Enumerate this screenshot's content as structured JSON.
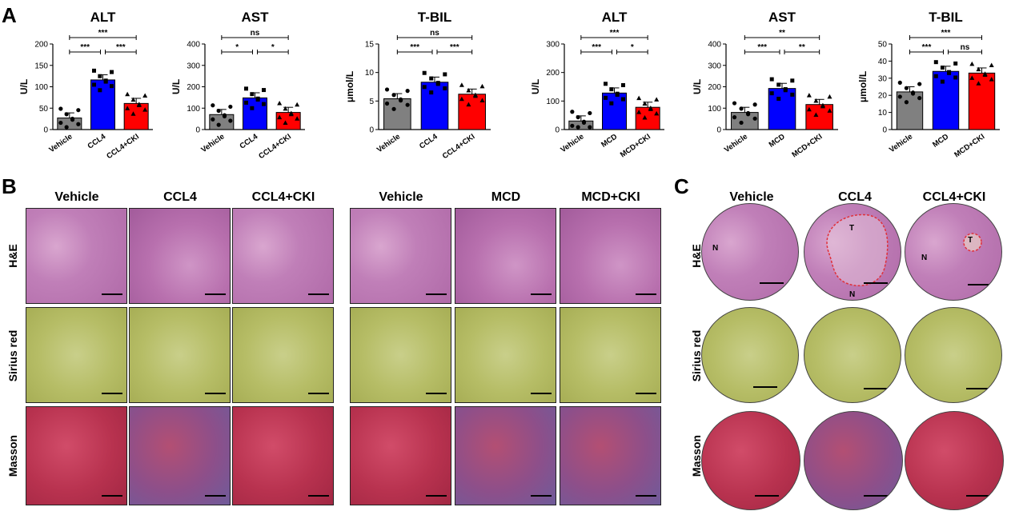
{
  "panels": {
    "a": "A",
    "b": "B",
    "c": "C"
  },
  "colors": {
    "vehicle": "#808080",
    "ccl4": "#0000ff",
    "treat": "#ff0000"
  },
  "chart_data": [
    {
      "type": "bar",
      "title": "ALT",
      "ylabel": "U/L",
      "categories": [
        "Vehicle",
        "CCL4",
        "CCL4+CKI"
      ],
      "values": [
        27,
        116,
        61
      ],
      "ylim": [
        0,
        200
      ],
      "yticks": [
        "0",
        "50",
        "100",
        "150",
        "200"
      ],
      "brackets": [
        {
          "from": 0,
          "to": 1,
          "text": "***",
          "level": 0
        },
        {
          "from": 1,
          "to": 2,
          "text": "***",
          "level": 0
        },
        {
          "from": 0,
          "to": 2,
          "text": "***",
          "level": 1
        }
      ]
    },
    {
      "type": "bar",
      "title": "AST",
      "ylabel": "U/L",
      "categories": [
        "Vehicle",
        "CCL4",
        "CCL4+CKI"
      ],
      "values": [
        70,
        148,
        80
      ],
      "ylim": [
        0,
        400
      ],
      "yticks": [
        "0",
        "100",
        "200",
        "300",
        "400"
      ],
      "brackets": [
        {
          "from": 0,
          "to": 1,
          "text": "*",
          "level": 0
        },
        {
          "from": 1,
          "to": 2,
          "text": "*",
          "level": 0
        },
        {
          "from": 0,
          "to": 2,
          "text": "ns",
          "level": 1
        }
      ]
    },
    {
      "type": "bar",
      "title": "T-BIL",
      "ylabel": "μmol/L",
      "categories": [
        "Vehicle",
        "CCL4",
        "CCL4+CKI"
      ],
      "values": [
        5.4,
        8.3,
        6.2
      ],
      "ylim": [
        0,
        15
      ],
      "yticks": [
        "0",
        "5",
        "10",
        "15"
      ],
      "brackets": [
        {
          "from": 0,
          "to": 1,
          "text": "***",
          "level": 0
        },
        {
          "from": 1,
          "to": 2,
          "text": "***",
          "level": 0
        },
        {
          "from": 0,
          "to": 2,
          "text": "ns",
          "level": 1
        }
      ]
    },
    {
      "type": "bar",
      "title": "ALT",
      "ylabel": "U/L",
      "categories": [
        "Vehicle",
        "MCD",
        "MCD+CKI"
      ],
      "values": [
        30,
        128,
        78
      ],
      "ylim": [
        0,
        300
      ],
      "yticks": [
        "0",
        "100",
        "200",
        "300"
      ],
      "brackets": [
        {
          "from": 0,
          "to": 1,
          "text": "***",
          "level": 0
        },
        {
          "from": 1,
          "to": 2,
          "text": "*",
          "level": 0
        },
        {
          "from": 0,
          "to": 2,
          "text": "***",
          "level": 1
        }
      ]
    },
    {
      "type": "bar",
      "title": "AST",
      "ylabel": "U/L",
      "categories": [
        "Vehicle",
        "MCD",
        "MCD+CKI"
      ],
      "values": [
        80,
        192,
        117
      ],
      "ylim": [
        0,
        400
      ],
      "yticks": [
        "0",
        "100",
        "200",
        "300",
        "400"
      ],
      "brackets": [
        {
          "from": 0,
          "to": 1,
          "text": "***",
          "level": 0
        },
        {
          "from": 1,
          "to": 2,
          "text": "**",
          "level": 0
        },
        {
          "from": 0,
          "to": 2,
          "text": "**",
          "level": 1
        }
      ]
    },
    {
      "type": "bar",
      "title": "T-BIL",
      "ylabel": "μmol/L",
      "categories": [
        "Vehicle",
        "MCD",
        "MCD+CKI"
      ],
      "values": [
        22,
        34,
        33
      ],
      "ylim": [
        0,
        50
      ],
      "yticks": [
        "0",
        "10",
        "20",
        "30",
        "40",
        "50"
      ],
      "brackets": [
        {
          "from": 0,
          "to": 1,
          "text": "***",
          "level": 0
        },
        {
          "from": 1,
          "to": 2,
          "text": "ns",
          "level": 0
        },
        {
          "from": 0,
          "to": 2,
          "text": "***",
          "level": 1
        }
      ]
    }
  ],
  "histology_b": {
    "left_cols": [
      "Vehicle",
      "CCL4",
      "CCL4+CKI"
    ],
    "right_cols": [
      "Vehicle",
      "MCD",
      "MCD+CKI"
    ],
    "rows": [
      "H&E",
      "Sirius red",
      "Masson"
    ]
  },
  "histology_c": {
    "cols": [
      "Vehicle",
      "CCL4",
      "CCL4+CKI"
    ],
    "rows": [
      "H&E",
      "Sirius red",
      "Masson"
    ],
    "marks": {
      "n": "N",
      "t": "T"
    }
  }
}
